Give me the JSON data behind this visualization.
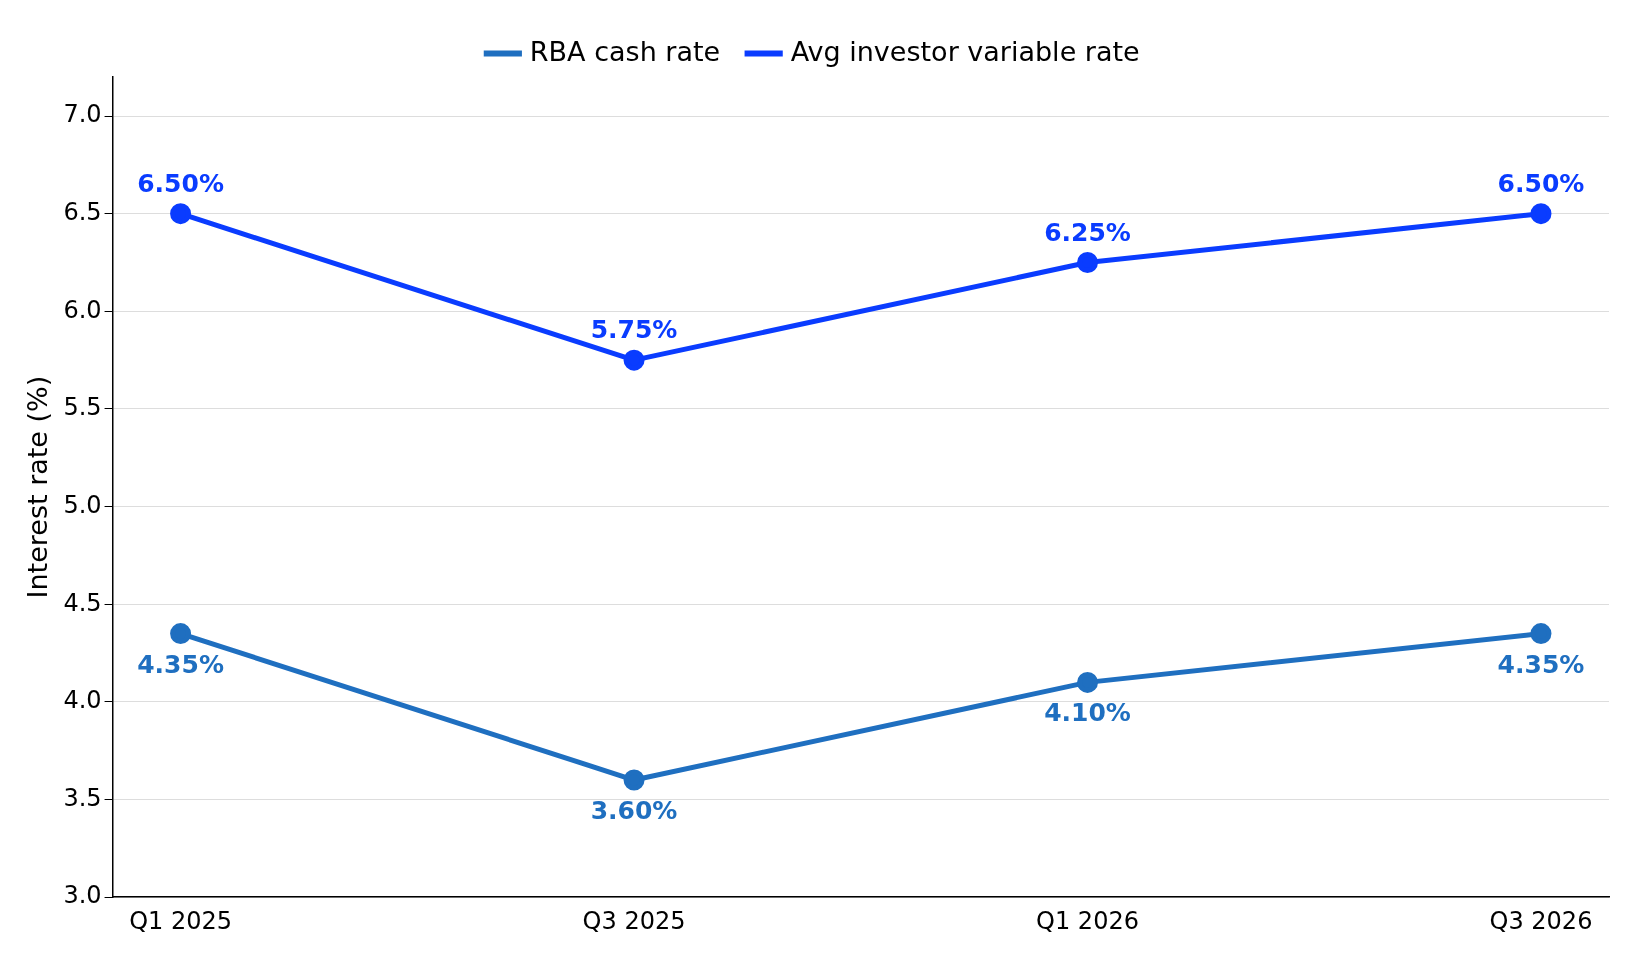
{
  "chart_data": {
    "type": "line",
    "ylabel": "Interest rate (%)",
    "categories": [
      "Q1 2025",
      "Q3 2025",
      "Q1 2026",
      "Q3 2026"
    ],
    "series": [
      {
        "name": "RBA cash rate",
        "color": "#1f6fc0",
        "values": [
          4.35,
          3.6,
          4.1,
          4.35
        ],
        "value_labels": [
          "4.35%",
          "3.60%",
          "4.10%",
          "4.35%"
        ]
      },
      {
        "name": "Avg investor variable rate",
        "color": "#0a3cff",
        "values": [
          6.5,
          5.75,
          6.25,
          6.5
        ],
        "value_labels": [
          "6.50%",
          "5.75%",
          "6.25%",
          "6.50%"
        ]
      }
    ],
    "ylim": [
      3.0,
      7.2
    ],
    "yticks": [
      {
        "value": 3.0,
        "label": "3.0"
      },
      {
        "value": 3.5,
        "label": "3.5"
      },
      {
        "value": 4.0,
        "label": "4.0"
      },
      {
        "value": 4.5,
        "label": "4.5"
      },
      {
        "value": 5.0,
        "label": "5.0"
      },
      {
        "value": 5.5,
        "label": "5.5"
      },
      {
        "value": 6.0,
        "label": "6.0"
      },
      {
        "value": 6.5,
        "label": "6.5"
      },
      {
        "value": 7.0,
        "label": "7.0"
      }
    ],
    "grid": "y",
    "legend": "top",
    "marker": "circle",
    "line_style": "solid"
  }
}
